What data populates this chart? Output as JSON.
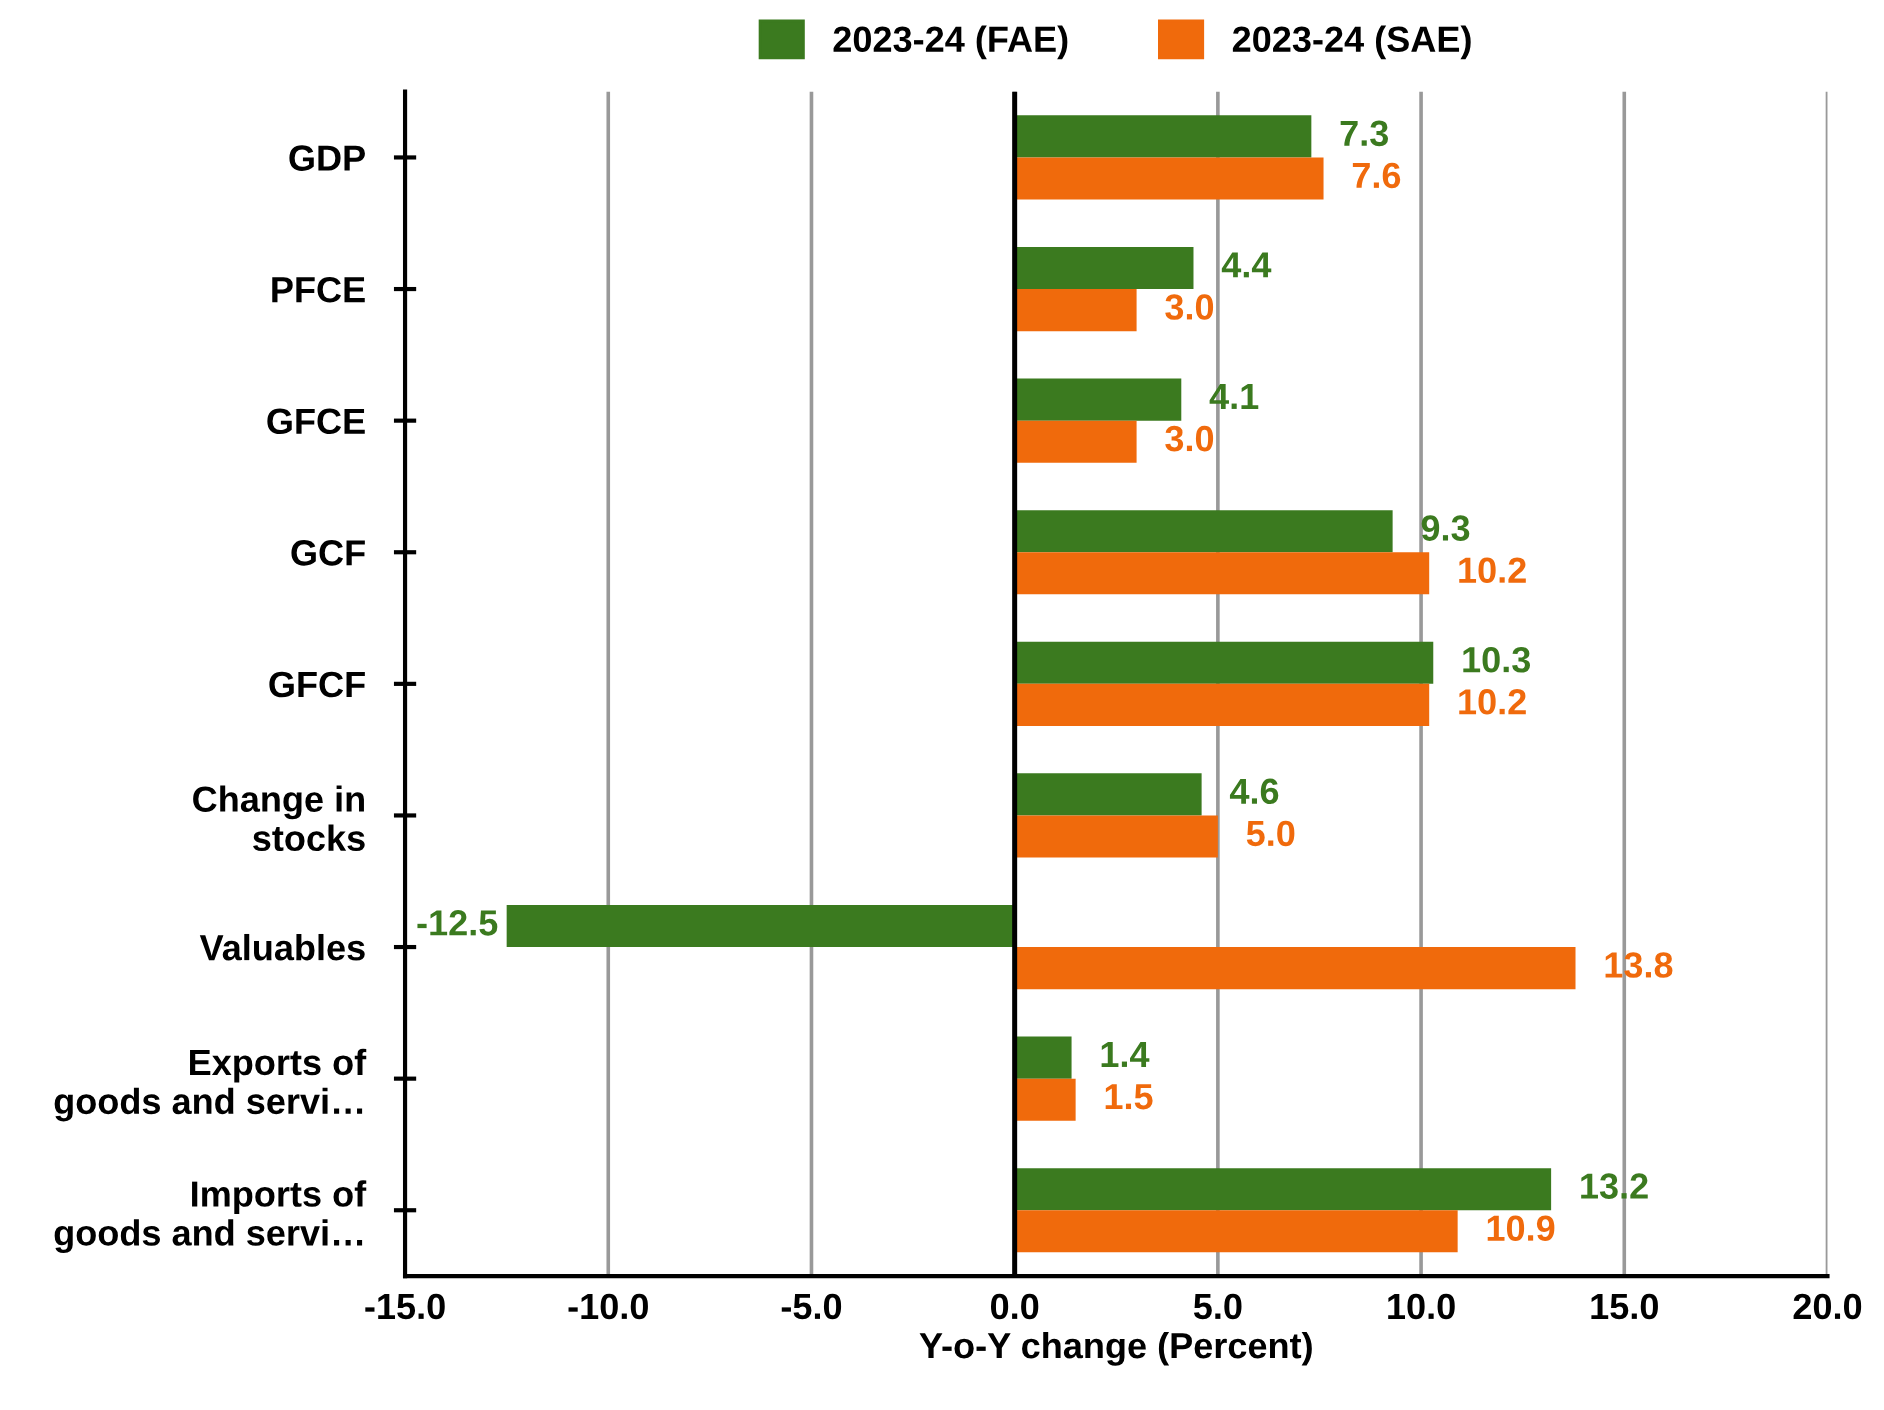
{
  "chart_data": {
    "type": "bar",
    "orientation": "horizontal",
    "xlabel": "Y-o-Y change (Percent)",
    "categories": [
      "GDP",
      "PFCE",
      "GFCE",
      "GCF",
      "GFCF",
      "Change in\nstocks",
      "Valuables",
      "Exports of\ngoods and servi…",
      "Imports of\ngoods and servi…"
    ],
    "series": [
      {
        "name": "2023-24 (FAE)",
        "color": "#3b7a1f",
        "values": [
          7.3,
          4.4,
          4.1,
          9.3,
          10.3,
          4.6,
          -12.5,
          1.4,
          13.2
        ],
        "value_labels": [
          "7.3",
          "4.4",
          "4.1",
          "9.3",
          "10.3",
          "4.6",
          "-12.5",
          "1.4",
          "13.2"
        ]
      },
      {
        "name": "2023-24 (SAE)",
        "color": "#f06a0c",
        "values": [
          7.6,
          3.0,
          3.0,
          10.2,
          10.2,
          5.0,
          13.8,
          1.5,
          10.9
        ],
        "value_labels": [
          "7.6",
          "3.0",
          "3.0",
          "10.2",
          "10.2",
          "5.0",
          "13.8",
          "1.5",
          "10.9"
        ]
      }
    ],
    "xlim": [
      -15,
      20
    ],
    "xticks": [
      {
        "value": -15,
        "label": "-15.0"
      },
      {
        "value": -10,
        "label": "-10.0"
      },
      {
        "value": -5,
        "label": "-5.0"
      },
      {
        "value": 0,
        "label": "0.0"
      },
      {
        "value": 5,
        "label": "5.0"
      },
      {
        "value": 10,
        "label": "10.0"
      },
      {
        "value": 15,
        "label": "15.0"
      },
      {
        "value": 20,
        "label": "20.0"
      }
    ],
    "ref_lines": [
      {
        "axis": "x",
        "value": 0,
        "color": "#000000"
      }
    ],
    "grid": "x",
    "legend": "top"
  }
}
